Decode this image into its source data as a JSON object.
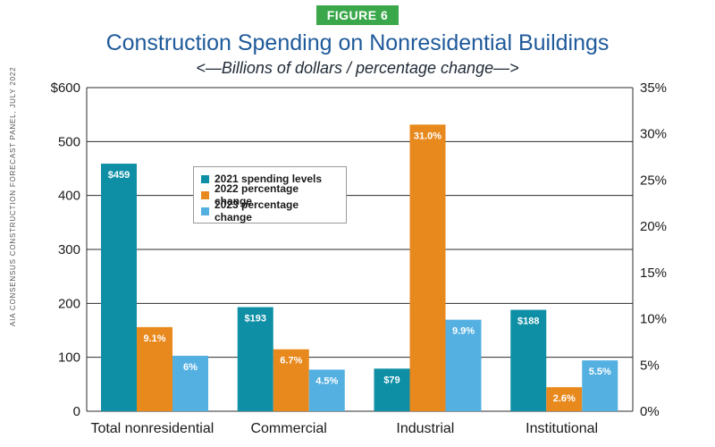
{
  "figure_label": "FIGURE 6",
  "source_note": "AIA CONSENSUS CONSTRUCTION FORECAST PANEL, JULY 2022",
  "colors": {
    "series_2021": "#0e8fa6",
    "series_2022": "#e8891e",
    "series_2023": "#55b0e2",
    "title": "#1f5a9a",
    "badge": "#3aa74a"
  },
  "chart_data": {
    "type": "bar",
    "title": "Construction Spending on Nonresidential Buildings",
    "subtitle": "<—Billions of dollars / percentage change—>",
    "categories": [
      "Total nonresidential",
      "Commercial",
      "Industrial",
      "Institutional"
    ],
    "series": [
      {
        "name": "2021 spending levels",
        "axis": "left",
        "values": [
          459,
          193,
          79,
          188
        ],
        "labels": [
          "$459",
          "$193",
          "$79",
          "$188"
        ],
        "color": "#0e8fa6"
      },
      {
        "name": "2022 percentage change",
        "axis": "right",
        "values": [
          9.1,
          6.7,
          31.0,
          2.6
        ],
        "labels": [
          "9.1%",
          "6.7%",
          "31.0%",
          "2.6%"
        ],
        "color": "#e8891e"
      },
      {
        "name": "2023 percentage change",
        "axis": "right",
        "values": [
          6,
          4.5,
          9.9,
          5.5
        ],
        "labels": [
          "6%",
          "4.5%",
          "9.9%",
          "5.5%"
        ],
        "color": "#55b0e2"
      }
    ],
    "left_axis": {
      "ylim": [
        0,
        600
      ],
      "ticks": [
        0,
        100,
        200,
        300,
        400,
        500,
        600
      ],
      "tick_labels": [
        "0",
        "100",
        "200",
        "300",
        "400",
        "500",
        "$600"
      ]
    },
    "right_axis": {
      "ylim": [
        0,
        35
      ],
      "ticks": [
        0,
        5,
        10,
        15,
        20,
        25,
        30,
        35
      ],
      "tick_labels": [
        "0%",
        "5%",
        "10%",
        "15%",
        "20%",
        "25%",
        "30%",
        "35%"
      ]
    },
    "grid": true,
    "legend_position": "upper-left inside plot"
  }
}
